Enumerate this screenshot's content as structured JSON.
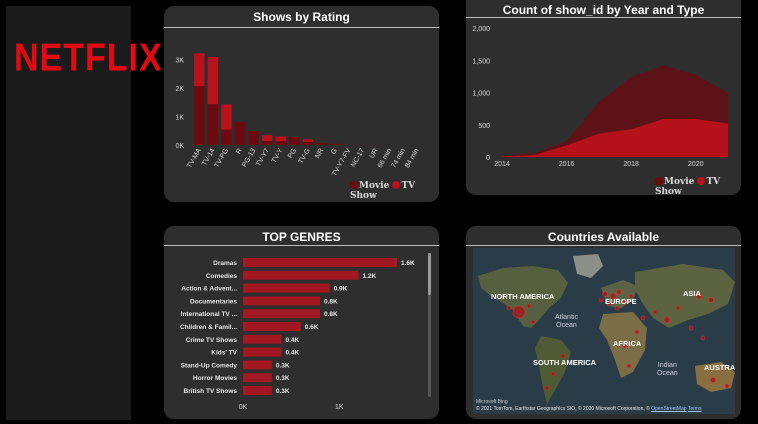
{
  "brand": {
    "logo_text": "NETFLIX"
  },
  "colors": {
    "movie": "#6d0a10",
    "tv_show": "#b8121b",
    "accent": "#e50914",
    "genre_bar": "#a11722"
  },
  "rating_card": {
    "title": "Shows by Rating",
    "legend": [
      "Movie",
      "TV Show"
    ],
    "chart_data": {
      "type": "bar",
      "title": "Shows by Rating",
      "categories": [
        "TV-MA",
        "TV-14",
        "TV-PG",
        "R",
        "PG-13",
        "TV-Y7",
        "TV-Y",
        "PG",
        "TV-G",
        "NR",
        "G",
        "TV-Y7-FV",
        "NC-17",
        "UR",
        "66 min",
        "74 min",
        "84 min"
      ],
      "series": [
        {
          "name": "Movie",
          "values": [
            2060,
            1430,
            540,
            800,
            490,
            140,
            130,
            280,
            110,
            70,
            40,
            5,
            3,
            3,
            1,
            1,
            1
          ]
        },
        {
          "name": "TV Show",
          "values": [
            1150,
            1650,
            880,
            2,
            0,
            200,
            170,
            0,
            90,
            5,
            0,
            1,
            0,
            0,
            0,
            0,
            0
          ]
        }
      ],
      "y_ticks": [
        "0K",
        "1K",
        "2K",
        "3K"
      ],
      "ylim": [
        0,
        3500
      ],
      "legend_position": "bottom-right"
    }
  },
  "year_card": {
    "title": "Count of show_id by Year and Type",
    "legend": [
      "Movie",
      "TV Show"
    ],
    "chart_data": {
      "type": "area",
      "title": "Count of show_id by Year and Type",
      "x": [
        2014,
        2015,
        2016,
        2017,
        2018,
        2019,
        2020,
        2021
      ],
      "series": [
        {
          "name": "Movie",
          "values": [
            20,
            60,
            250,
            850,
            1240,
            1420,
            1280,
            990
          ]
        },
        {
          "name": "TV Show",
          "values": [
            10,
            30,
            180,
            360,
            430,
            590,
            590,
            520
          ]
        }
      ],
      "x_ticks": [
        "2014",
        "2016",
        "2018",
        "2020"
      ],
      "y_ticks": [
        "0",
        "500",
        "1,000",
        "1,500",
        "2,000"
      ],
      "ylim": [
        0,
        2000
      ],
      "legend_position": "bottom-right"
    }
  },
  "genres_card": {
    "title": "TOP GENRES",
    "chart_data": {
      "type": "bar",
      "orientation": "horizontal",
      "categories": [
        "Dramas",
        "Comedies",
        "Action & Advent...",
        "Documentaries",
        "International TV ...",
        "Children & Famil...",
        "Crime TV Shows",
        "Kids' TV",
        "Stand-Up Comedy",
        "Horror Movies",
        "British TV Shows"
      ],
      "values": [
        1600,
        1200,
        900,
        800,
        800,
        600,
        400,
        400,
        300,
        300,
        300
      ],
      "value_labels": [
        "1.6K",
        "1.2K",
        "0.9K",
        "0.8K",
        "0.8K",
        "0.6K",
        "0.4K",
        "0.4K",
        "0.3K",
        "0.3K",
        "0.3K"
      ],
      "x_ticks": [
        "0K",
        "1K"
      ],
      "xlim": [
        0,
        1600
      ]
    }
  },
  "map_card": {
    "title": "Countries Available",
    "labels": {
      "north_america": "NORTH AMERICA",
      "europe": "EUROPE",
      "asia": "ASIA",
      "africa": "AFRICA",
      "south_america": "SOUTH AMERICA",
      "australia": "AUSTRALI"
    },
    "oceans": {
      "atlantic": "Atlantic\nOcean",
      "indian": "Indian\nOcean"
    },
    "bing_text": "Microsoft Bing",
    "attribution": "© 2021 TomTom, Earthstar Geographics SIO, © 2020 Microsoft Corporation, ©",
    "osm_link": "OpenStreetMap",
    "terms_link": "Terms"
  }
}
